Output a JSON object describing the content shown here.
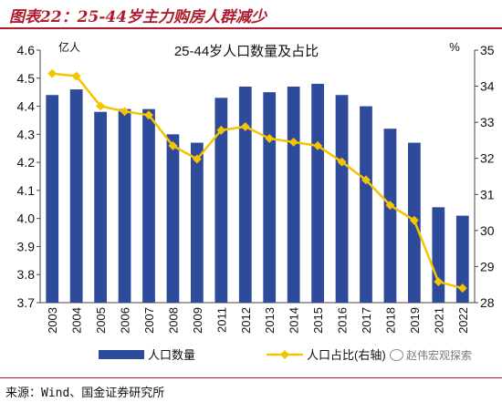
{
  "figure_title": "图表22：25-44岁主力购房人群减少",
  "source": "来源：Wind、国金证券研究所",
  "watermark": "赵伟宏观探索",
  "chart_data": {
    "type": "bar+line",
    "title": "25-44岁人口数量及占比",
    "left_unit": "亿人",
    "right_unit": "%",
    "categories": [
      "2003",
      "2004",
      "2005",
      "2006",
      "2007",
      "2008",
      "2009",
      "2011",
      "2012",
      "2013",
      "2014",
      "2015",
      "2016",
      "2017",
      "2018",
      "2019",
      "2021",
      "2022"
    ],
    "y_left": {
      "min": 3.7,
      "max": 4.6,
      "ticks": [
        "3.7",
        "3.8",
        "3.9",
        "4.0",
        "4.1",
        "4.2",
        "4.3",
        "4.4",
        "4.5",
        "4.6"
      ]
    },
    "y_right": {
      "min": 28,
      "max": 35,
      "ticks": [
        "28",
        "29",
        "30",
        "31",
        "32",
        "33",
        "34",
        "35"
      ]
    },
    "series": [
      {
        "name": "人口数量",
        "type": "bar",
        "axis": "left",
        "color": "#2e4a9a",
        "values": [
          4.44,
          4.46,
          4.38,
          4.39,
          4.39,
          4.3,
          4.27,
          4.43,
          4.47,
          4.45,
          4.47,
          4.48,
          4.44,
          4.4,
          4.32,
          4.27,
          4.04,
          4.01
        ]
      },
      {
        "name": "人口占比(右轴)",
        "type": "line",
        "axis": "right",
        "color": "#f5c400",
        "values": [
          34.35,
          34.28,
          33.45,
          33.3,
          33.2,
          32.35,
          31.98,
          32.78,
          32.88,
          32.55,
          32.45,
          32.35,
          31.9,
          31.4,
          30.7,
          30.28,
          28.58,
          28.4
        ]
      }
    ],
    "legend_position": "bottom",
    "grid": false
  }
}
